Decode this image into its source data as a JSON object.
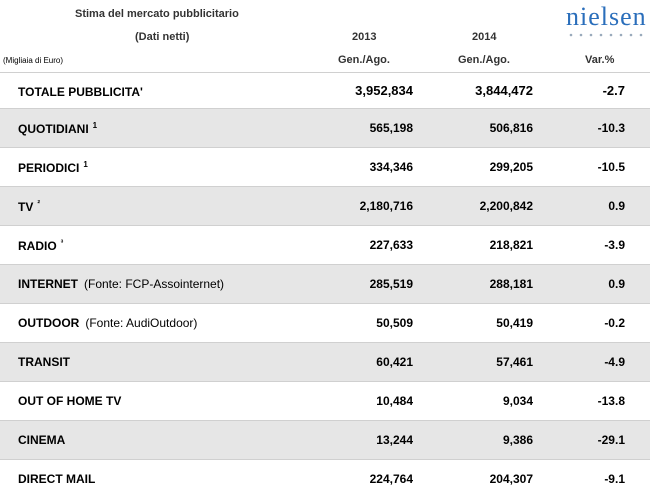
{
  "header": {
    "title": "Stima del mercato pubblicitario",
    "subtitle": "(Dati netti)",
    "unit": "(Migliaia di Euro)",
    "logo": "nielsen",
    "columns": [
      {
        "year": "2013",
        "period": "Gen./Ago."
      },
      {
        "year": "2014",
        "period": "Gen./Ago."
      },
      {
        "period": "Var.%"
      }
    ]
  },
  "table": {
    "rows": [
      {
        "name": "TOTALE PUBBLICITA'",
        "cells": [
          "3,952,834",
          "3,844,472",
          "-2.7"
        ]
      },
      {
        "name": "QUOTIDIANI",
        "sup": "1",
        "cells": [
          "565,198",
          "506,816",
          "-10.3"
        ]
      },
      {
        "name": "PERIODICI",
        "sup": "1",
        "cells": [
          "334,346",
          "299,205",
          "-10.5"
        ]
      },
      {
        "name": "TV",
        "sup": "²",
        "cells": [
          "2,180,716",
          "2,200,842",
          "0.9"
        ]
      },
      {
        "name": "RADIO",
        "sup": "³",
        "cells": [
          "227,633",
          "218,821",
          "-3.9"
        ]
      },
      {
        "name": "INTERNET",
        "note": "(Fonte: FCP-Assointernet)",
        "cells": [
          "285,519",
          "288,181",
          "0.9"
        ]
      },
      {
        "name": "OUTDOOR",
        "note": "(Fonte: AudiOutdoor)",
        "cells": [
          "50,509",
          "50,419",
          "-0.2"
        ]
      },
      {
        "name": "TRANSIT",
        "cells": [
          "60,421",
          "57,461",
          "-4.9"
        ]
      },
      {
        "name": "OUT OF HOME TV",
        "cells": [
          "10,484",
          "9,034",
          "-13.8"
        ]
      },
      {
        "name": "CINEMA",
        "cells": [
          "13,244",
          "9,386",
          "-29.1"
        ]
      },
      {
        "name": "DIRECT MAIL",
        "cells": [
          "224,764",
          "204,307",
          "-9.1"
        ]
      }
    ]
  }
}
